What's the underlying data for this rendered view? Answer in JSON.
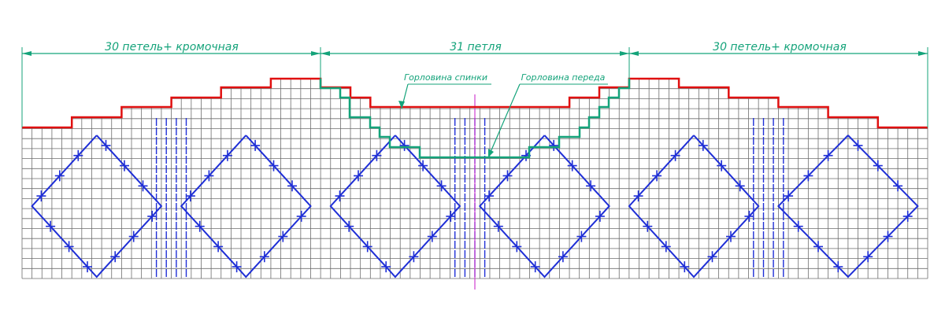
{
  "colors": {
    "grid": "#6e6e6e",
    "motif": "#1f2fd6",
    "outline": "#e01010",
    "neckline": "#14a37a",
    "dimension": "#14a37a",
    "center_line": "#d040d0",
    "text": "#14a37a"
  },
  "dimensions": {
    "left_label": "30 петель+ кромочная",
    "center_label": "31 петля",
    "right_label": "30 петель+ кромочная"
  },
  "annotations": {
    "back_neckline": "Горловина спинки",
    "front_neckline": "Горловина переда"
  },
  "chart": {
    "columns": 91,
    "rows": 15,
    "sections_stitches": [
      30,
      31,
      30
    ]
  }
}
